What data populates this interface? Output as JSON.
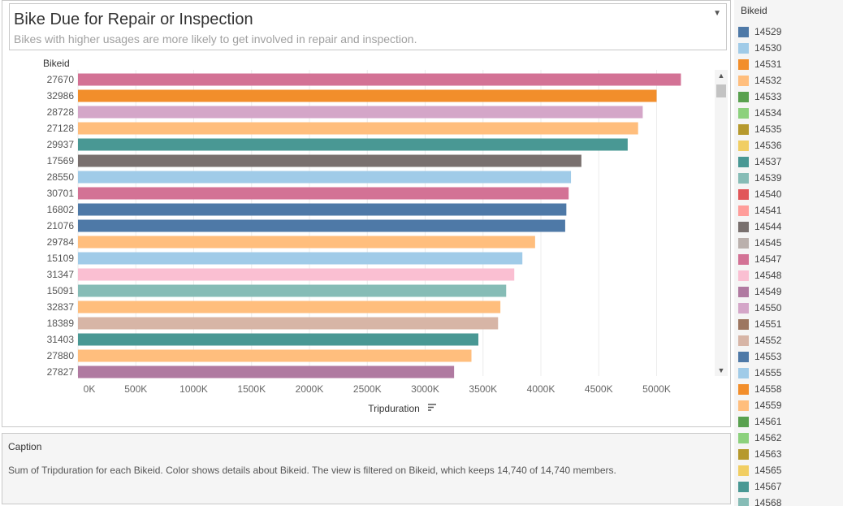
{
  "worksheet": {
    "title": "Bike Due for Repair or Inspection",
    "subtitle": "Bikes with higher usages are more likely to get involved in repair and inspection.",
    "dropdown_icon": "chevron-down-icon"
  },
  "chart_data": {
    "type": "bar",
    "orientation": "horizontal",
    "row_header": "Bikeid",
    "xlabel": "Tripduration",
    "x_ticks": [
      "0K",
      "500K",
      "1000K",
      "1500K",
      "2000K",
      "2500K",
      "3000K",
      "3500K",
      "4000K",
      "4500K",
      "5000K"
    ],
    "xlim": [
      0,
      5400000
    ],
    "grid": true,
    "categories": [
      "27670",
      "32986",
      "28728",
      "27128",
      "29937",
      "17569",
      "28550",
      "30701",
      "16802",
      "21076",
      "29784",
      "15109",
      "31347",
      "15091",
      "32837",
      "18389",
      "31403",
      "27880",
      "27827"
    ],
    "values": [
      5210000,
      5000000,
      4880000,
      4840000,
      4750000,
      4350000,
      4260000,
      4240000,
      4220000,
      4210000,
      3950000,
      3840000,
      3770000,
      3700000,
      3650000,
      3630000,
      3460000,
      3400000,
      3250000
    ],
    "colors": [
      "#d37295",
      "#f28e2b",
      "#d4a6c8",
      "#ffbe7d",
      "#499894",
      "#79706e",
      "#a0cbe8",
      "#d37295",
      "#4e79a7",
      "#4e79a7",
      "#ffbe7d",
      "#a0cbe8",
      "#fabfd2",
      "#86bcb6",
      "#ffbe7d",
      "#d7b5a6",
      "#499894",
      "#ffbe7d",
      "#b07aa1"
    ],
    "sort_icon": "sort-descending-icon"
  },
  "scrollbar": {
    "up_icon": "scroll-up-icon",
    "down_icon": "scroll-down-icon"
  },
  "caption": {
    "title": "Caption",
    "text": "Sum of Tripduration for each Bikeid.  Color shows details about Bikeid. The view is filtered on Bikeid, which keeps 14,740 of 14,740 members."
  },
  "legend": {
    "title": "Bikeid",
    "items": [
      {
        "label": "14529",
        "color": "#4e79a7"
      },
      {
        "label": "14530",
        "color": "#a0cbe8"
      },
      {
        "label": "14531",
        "color": "#f28e2b"
      },
      {
        "label": "14532",
        "color": "#ffbe7d"
      },
      {
        "label": "14533",
        "color": "#59a14f"
      },
      {
        "label": "14534",
        "color": "#8cd17d"
      },
      {
        "label": "14535",
        "color": "#b6992d"
      },
      {
        "label": "14536",
        "color": "#f1ce63"
      },
      {
        "label": "14537",
        "color": "#499894"
      },
      {
        "label": "14539",
        "color": "#86bcb6"
      },
      {
        "label": "14540",
        "color": "#e15759"
      },
      {
        "label": "14541",
        "color": "#ff9d9a"
      },
      {
        "label": "14544",
        "color": "#79706e"
      },
      {
        "label": "14545",
        "color": "#bab0ac"
      },
      {
        "label": "14547",
        "color": "#d37295"
      },
      {
        "label": "14548",
        "color": "#fabfd2"
      },
      {
        "label": "14549",
        "color": "#b07aa1"
      },
      {
        "label": "14550",
        "color": "#d4a6c8"
      },
      {
        "label": "14551",
        "color": "#9d7660"
      },
      {
        "label": "14552",
        "color": "#d7b5a6"
      },
      {
        "label": "14553",
        "color": "#4e79a7"
      },
      {
        "label": "14555",
        "color": "#a0cbe8"
      },
      {
        "label": "14558",
        "color": "#f28e2b"
      },
      {
        "label": "14559",
        "color": "#ffbe7d"
      },
      {
        "label": "14561",
        "color": "#59a14f"
      },
      {
        "label": "14562",
        "color": "#8cd17d"
      },
      {
        "label": "14563",
        "color": "#b6992d"
      },
      {
        "label": "14565",
        "color": "#f1ce63"
      },
      {
        "label": "14567",
        "color": "#499894"
      },
      {
        "label": "14568",
        "color": "#86bcb6"
      }
    ]
  }
}
